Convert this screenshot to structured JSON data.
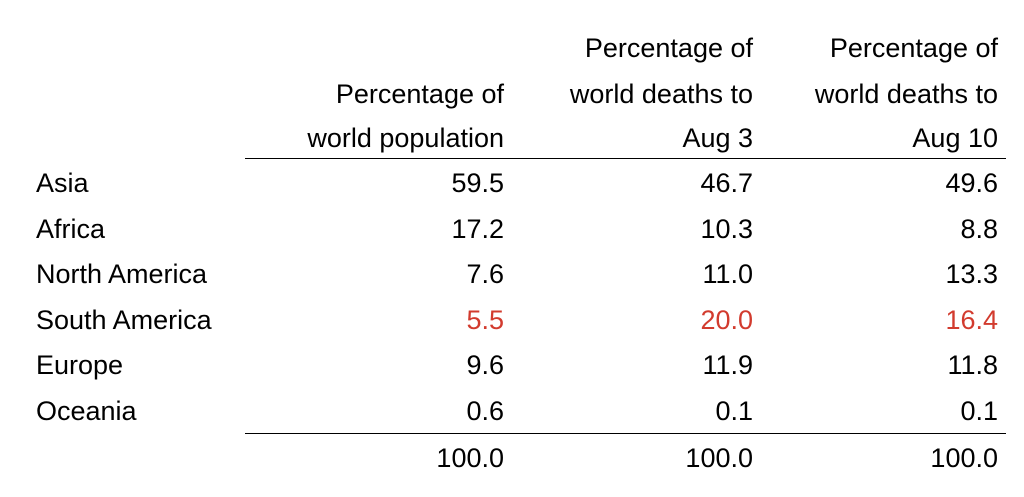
{
  "chart_data": {
    "type": "table",
    "columns": [
      "Percentage of world population",
      "Percentage of world deaths to Aug 3",
      "Percentage of world deaths to Aug 10"
    ],
    "header_lines": [
      [
        "Percentage of",
        "world population"
      ],
      [
        "Percentage of",
        "world deaths to",
        "Aug 3"
      ],
      [
        "Percentage of",
        "world deaths to",
        "Aug 10"
      ]
    ],
    "rows": [
      {
        "label": "Asia",
        "values": [
          "59.5",
          "46.7",
          "49.6"
        ]
      },
      {
        "label": "Africa",
        "values": [
          "17.2",
          "10.3",
          "8.8"
        ]
      },
      {
        "label": "North America",
        "values": [
          "7.6",
          "11.0",
          "13.3"
        ]
      },
      {
        "label": "South America",
        "values": [
          "5.5",
          "20.0",
          "16.4"
        ],
        "highlight": true
      },
      {
        "label": "Europe",
        "values": [
          "9.6",
          "11.9",
          "11.8"
        ]
      },
      {
        "label": "Oceania",
        "values": [
          "0.6",
          "0.1",
          "0.1"
        ]
      }
    ],
    "totals": [
      "100.0",
      "100.0",
      "100.0"
    ],
    "highlight_color": "#d23b2e"
  }
}
